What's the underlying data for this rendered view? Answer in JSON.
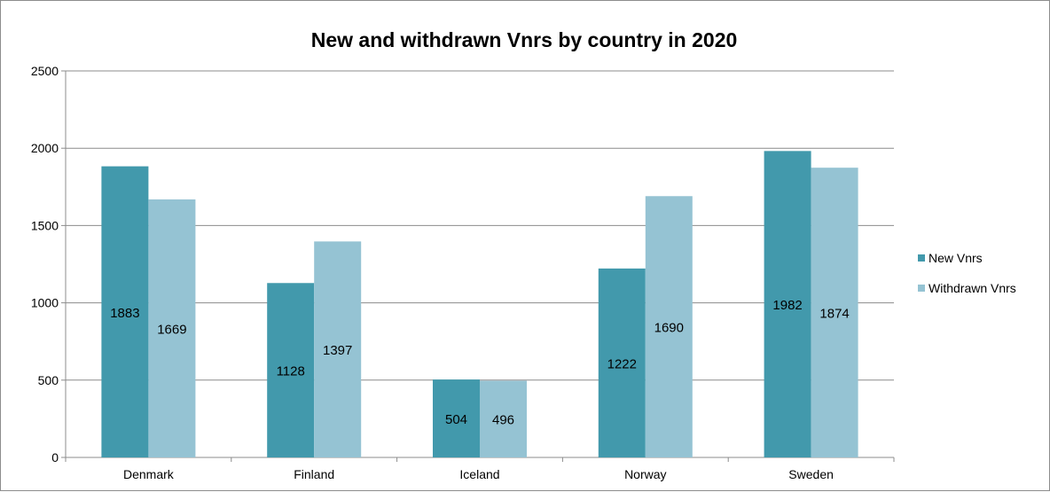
{
  "chart_data": {
    "type": "bar",
    "title": "New and withdrawn Vnrs by country in 2020",
    "xlabel": "",
    "ylabel": "",
    "categories": [
      "Denmark",
      "Finland",
      "Iceland",
      "Norway",
      "Sweden"
    ],
    "series": [
      {
        "name": "New Vnrs",
        "values": [
          1883,
          1128,
          504,
          1222,
          1982
        ],
        "color": "#4299ac"
      },
      {
        "name": "Withdrawn Vnrs",
        "values": [
          1669,
          1397,
          496,
          1690,
          1874
        ],
        "color": "#95c3d3"
      }
    ],
    "ylim": [
      0,
      2500
    ],
    "yticks": [
      0,
      500,
      1000,
      1500,
      2000,
      2500
    ],
    "grid": true,
    "legend_position": "right",
    "data_labels": true
  }
}
